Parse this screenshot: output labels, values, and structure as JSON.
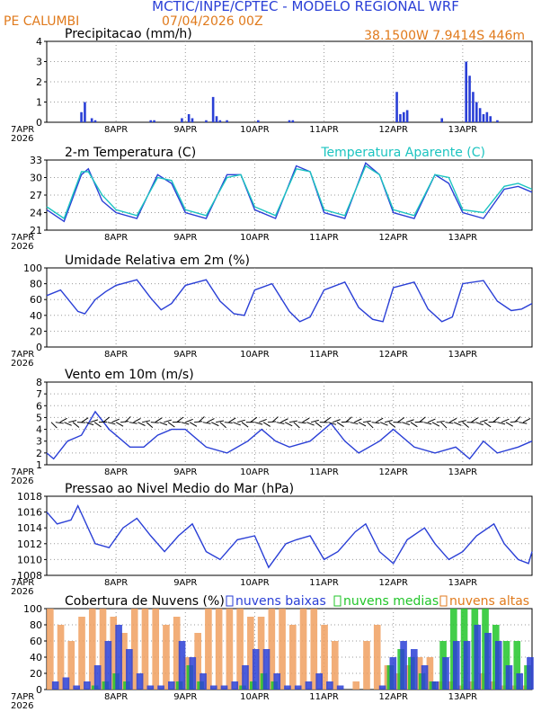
{
  "header": {
    "title": "MCTIC/INPE/CPTEC - MODELO REGIONAL WRF",
    "location": "PE CALUMBI",
    "run": "07/04/2026 00Z",
    "coords": "38.1500W 7.9414S 446m",
    "title_color": "#2a3fd6",
    "info_color": "#e07a1c"
  },
  "x_ticks": [
    "7APR",
    "8APR",
    "9APR",
    "10APR",
    "11APR",
    "12APR",
    "13APR"
  ],
  "x_year": "2026",
  "chart_data": [
    {
      "id": "precip",
      "type": "bar",
      "title": "Precipitacao (mm/h)",
      "ylim": [
        0,
        4
      ],
      "yticks": [
        "0",
        "1",
        "2",
        "3",
        "4"
      ],
      "grid": true,
      "color": "#2a3fd6",
      "series": [
        {
          "x": [
            0.5,
            0.55,
            0.65,
            0.7,
            1.5,
            1.55,
            1.95,
            2.05,
            2.1,
            2.3,
            2.4,
            2.45,
            2.5,
            2.6,
            3.05,
            3.5,
            3.55,
            5.05,
            5.1,
            5.15,
            5.2,
            5.7,
            6.05,
            6.1,
            6.15,
            6.2,
            6.25,
            6.3,
            6.35,
            6.4,
            6.5
          ],
          "values": [
            0.5,
            1.0,
            0.2,
            0.1,
            0.1,
            0.1,
            0.2,
            0.4,
            0.2,
            0.1,
            1.25,
            0.3,
            0.1,
            0.1,
            0.1,
            0.1,
            0.1,
            1.5,
            0.4,
            0.5,
            0.6,
            0.2,
            3.0,
            2.3,
            1.5,
            1.0,
            0.7,
            0.4,
            0.5,
            0.3,
            0.1
          ]
        }
      ]
    },
    {
      "id": "temp",
      "type": "line",
      "title": "2-m Temperatura (C)",
      "legend": "Temperatura Aparente (C)",
      "ylim": [
        21,
        33
      ],
      "yticks": [
        "21",
        "24",
        "27",
        "30",
        "33"
      ],
      "grid": true,
      "series": [
        {
          "name": "2-m Temperatura (C)",
          "color": "#2a3fd6",
          "x": [
            0,
            0.25,
            0.5,
            0.6,
            0.8,
            1.0,
            1.3,
            1.6,
            1.8,
            2.0,
            2.3,
            2.6,
            2.8,
            3.0,
            3.3,
            3.6,
            3.8,
            4.0,
            4.3,
            4.6,
            4.8,
            5.0,
            5.3,
            5.6,
            5.8,
            6.0,
            6.3,
            6.6,
            6.8,
            7.0
          ],
          "values": [
            24.5,
            22.5,
            30.5,
            31.5,
            26.0,
            24.0,
            23.0,
            30.5,
            29.0,
            24.0,
            23.0,
            30.5,
            30.5,
            24.5,
            23.0,
            32.0,
            31.0,
            24.0,
            23.0,
            32.5,
            30.5,
            24.0,
            23.0,
            30.5,
            29.0,
            24.0,
            23.0,
            28.0,
            28.5,
            27.5
          ]
        },
        {
          "name": "Temperatura Aparente (C)",
          "color": "#1cc4c0",
          "x": [
            0,
            0.25,
            0.5,
            0.6,
            0.8,
            1.0,
            1.3,
            1.6,
            1.8,
            2.0,
            2.3,
            2.6,
            2.8,
            3.0,
            3.3,
            3.6,
            3.8,
            4.0,
            4.3,
            4.6,
            4.8,
            5.0,
            5.3,
            5.6,
            5.8,
            6.0,
            6.3,
            6.6,
            6.8,
            7.0
          ],
          "values": [
            25.0,
            23.0,
            31.0,
            31.0,
            27.0,
            24.5,
            23.5,
            30.0,
            29.5,
            24.5,
            23.5,
            30.0,
            30.5,
            25.0,
            23.5,
            31.5,
            31.0,
            24.5,
            23.5,
            32.0,
            30.5,
            24.5,
            23.5,
            30.5,
            30.0,
            24.5,
            24.0,
            28.5,
            29.0,
            28.0
          ]
        }
      ]
    },
    {
      "id": "rh",
      "type": "line",
      "title": "Umidade Relativa em 2m (%)",
      "ylim": [
        0,
        100
      ],
      "yticks": [
        "0",
        "20",
        "40",
        "60",
        "80",
        "100"
      ],
      "grid": true,
      "series": [
        {
          "color": "#2a3fd6",
          "x": [
            0,
            0.2,
            0.45,
            0.55,
            0.7,
            0.85,
            1.0,
            1.3,
            1.5,
            1.65,
            1.8,
            2.0,
            2.3,
            2.5,
            2.7,
            2.85,
            3.0,
            3.25,
            3.5,
            3.65,
            3.8,
            4.0,
            4.3,
            4.5,
            4.7,
            4.85,
            5.0,
            5.3,
            5.5,
            5.7,
            5.85,
            6.0,
            6.3,
            6.5,
            6.7,
            6.85,
            7.0
          ],
          "values": [
            65,
            72,
            45,
            42,
            60,
            70,
            78,
            85,
            62,
            47,
            55,
            78,
            85,
            58,
            42,
            40,
            72,
            80,
            45,
            32,
            38,
            72,
            82,
            50,
            35,
            32,
            75,
            82,
            48,
            32,
            38,
            80,
            84,
            58,
            46,
            48,
            55
          ]
        }
      ]
    },
    {
      "id": "wind",
      "type": "line",
      "title": "Vento em 10m (m/s)",
      "ylim": [
        1,
        8
      ],
      "yticks": [
        "1",
        "2",
        "3",
        "4",
        "5",
        "6",
        "7",
        "8"
      ],
      "grid": true,
      "series": [
        {
          "color": "#2a3fd6",
          "x": [
            0,
            0.1,
            0.3,
            0.5,
            0.7,
            0.9,
            1.2,
            1.4,
            1.6,
            1.8,
            2.0,
            2.3,
            2.6,
            2.9,
            3.1,
            3.3,
            3.5,
            3.8,
            4.1,
            4.3,
            4.5,
            4.8,
            5.0,
            5.3,
            5.6,
            5.9,
            6.1,
            6.3,
            6.5,
            6.8,
            7.0
          ],
          "values": [
            2.0,
            1.5,
            3.0,
            3.5,
            5.5,
            4.0,
            2.5,
            2.5,
            3.5,
            4.0,
            4.0,
            2.5,
            2.0,
            3.0,
            4.0,
            3.0,
            2.5,
            3.0,
            4.5,
            3.0,
            2.0,
            3.0,
            4.0,
            2.5,
            2.0,
            2.5,
            1.5,
            3.0,
            2.0,
            2.5,
            3.0
          ]
        }
      ],
      "barbs_level": 4.6
    },
    {
      "id": "pres",
      "type": "line",
      "title": "Pressao ao Nivel Medio do Mar (hPa)",
      "ylim": [
        1008,
        1018
      ],
      "yticks": [
        "1008",
        "1010",
        "1012",
        "1014",
        "1016",
        "1018"
      ],
      "grid": true,
      "series": [
        {
          "color": "#2a3fd6",
          "x": [
            0,
            0.15,
            0.35,
            0.45,
            0.7,
            0.9,
            1.1,
            1.3,
            1.5,
            1.7,
            1.9,
            2.1,
            2.3,
            2.5,
            2.75,
            3.0,
            3.2,
            3.45,
            3.6,
            3.8,
            4.0,
            4.2,
            4.45,
            4.6,
            4.8,
            5.0,
            5.2,
            5.45,
            5.6,
            5.8,
            6.0,
            6.2,
            6.45,
            6.6,
            6.8,
            6.95,
            7.0
          ],
          "values": [
            1016.0,
            1014.5,
            1015.0,
            1016.8,
            1012.0,
            1011.5,
            1014.0,
            1015.2,
            1013.0,
            1011.0,
            1013.0,
            1014.5,
            1011.0,
            1010.0,
            1012.5,
            1013.0,
            1009.0,
            1012.0,
            1012.5,
            1013.0,
            1010.0,
            1011.0,
            1013.5,
            1014.5,
            1011.0,
            1009.5,
            1012.5,
            1014.0,
            1012.0,
            1010.0,
            1011.0,
            1013.0,
            1014.5,
            1012.0,
            1010.0,
            1009.5,
            1011.0
          ]
        }
      ]
    },
    {
      "id": "clouds",
      "type": "bar",
      "title": "Cobertura de Nuvens (%)",
      "ylim": [
        0,
        100
      ],
      "yticks": [
        "0",
        "20",
        "40",
        "60",
        "80",
        "100"
      ],
      "grid": true,
      "series": [
        {
          "name": "nuvens baixas",
          "color": "#2a3fd6",
          "values": [
            10,
            15,
            5,
            10,
            30,
            60,
            80,
            50,
            20,
            5,
            5,
            10,
            60,
            40,
            20,
            5,
            5,
            10,
            30,
            50,
            50,
            20,
            5,
            5,
            10,
            20,
            10,
            5,
            0,
            0,
            0,
            5,
            40,
            60,
            50,
            30,
            10,
            40,
            60,
            60,
            80,
            70,
            60,
            30,
            20,
            40
          ]
        },
        {
          "name": "nuvens medias",
          "color": "#22c52a",
          "values": [
            0,
            0,
            0,
            0,
            5,
            10,
            20,
            10,
            0,
            0,
            0,
            0,
            10,
            30,
            10,
            0,
            0,
            0,
            5,
            10,
            20,
            10,
            0,
            0,
            0,
            0,
            0,
            0,
            0,
            0,
            0,
            0,
            30,
            50,
            40,
            20,
            10,
            60,
            100,
            100,
            100,
            100,
            80,
            60,
            60,
            30
          ]
        },
        {
          "name": "nuvens altas",
          "color": "#f0a060",
          "values": [
            100,
            80,
            60,
            90,
            100,
            100,
            90,
            70,
            100,
            100,
            100,
            80,
            90,
            40,
            70,
            100,
            100,
            100,
            100,
            90,
            90,
            100,
            100,
            80,
            100,
            100,
            80,
            60,
            0,
            10,
            60,
            80,
            30,
            20,
            30,
            40,
            40,
            10,
            10,
            5,
            10,
            20,
            10,
            5,
            5,
            5
          ]
        }
      ]
    }
  ]
}
